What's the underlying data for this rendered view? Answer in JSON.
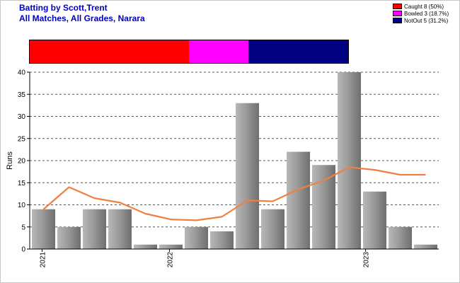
{
  "header": {
    "title_line1": "Batting by Scott,Trent",
    "title_line2": "All Matches, All Grades, Narara"
  },
  "legend": {
    "items": [
      {
        "label": "Caught 8 (50%)",
        "color": "#ff0000",
        "fraction": 0.5
      },
      {
        "label": "Bowled 3 (18.7%)",
        "color": "#ff00ff",
        "fraction": 0.187
      },
      {
        "label": "NotOut 5 (31.2%)",
        "color": "#000080",
        "fraction": 0.312
      }
    ]
  },
  "chart_data": {
    "type": "bar",
    "ylabel": "Runs",
    "ylim": [
      0,
      40
    ],
    "yticks": [
      0,
      5,
      10,
      15,
      20,
      25,
      30,
      35,
      40
    ],
    "grid": "horizontal dashed",
    "bar_values": [
      9,
      5,
      9,
      9,
      1,
      1,
      5,
      4,
      33,
      9,
      22,
      19,
      40,
      13,
      5,
      1
    ],
    "line_series": {
      "values": [
        9,
        14,
        11.5,
        10.5,
        8,
        6.7,
        6.5,
        7.3,
        11,
        10.8,
        13.5,
        15.5,
        18.5,
        17.9,
        16.8,
        16.8
      ],
      "color": "#f08040"
    },
    "x_date_labels": [
      {
        "label": "2021",
        "index": 0.4
      },
      {
        "label": "2022",
        "index": 5.4
      },
      {
        "label": "2023",
        "index": 13.1
      }
    ],
    "bar_color": "#a0a0a0"
  }
}
